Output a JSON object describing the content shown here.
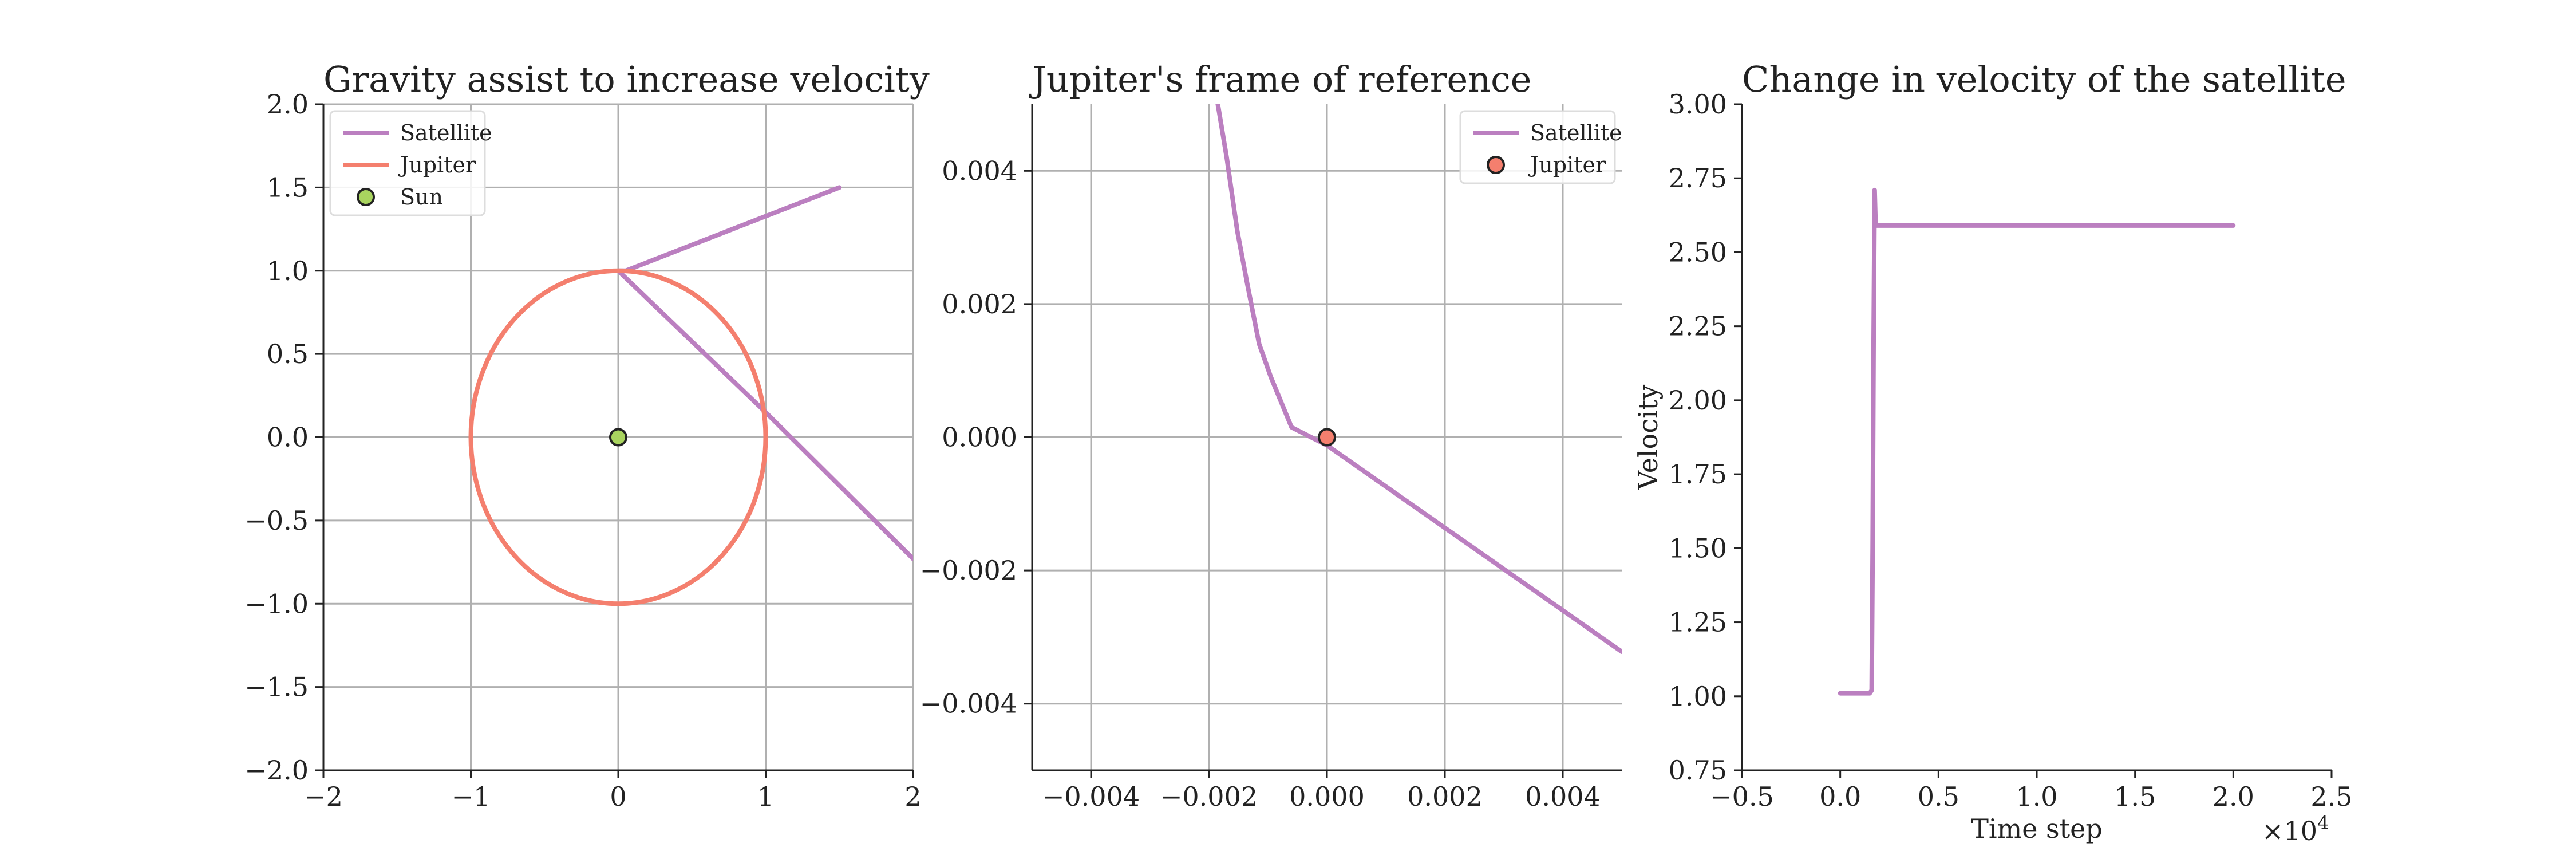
{
  "colors": {
    "satellite": "#bb7fc0",
    "jupiter": "#f47f6e",
    "sun": "#a9d45f",
    "grid": "#b0b0b0",
    "spine": "#222222"
  },
  "chart_data": [
    {
      "id": "gravity",
      "type": "line",
      "title": "Gravity assist to increase velocity",
      "xlabel": "",
      "ylabel": "",
      "xlim": [
        -2,
        2
      ],
      "ylim": [
        -2,
        2
      ],
      "xticks": [
        -2,
        -1,
        0,
        1,
        2
      ],
      "xtick_labels": [
        "−2",
        "−1",
        "0",
        "1",
        "2"
      ],
      "yticks": [
        -2,
        -1.5,
        -1,
        -0.5,
        0,
        0.5,
        1,
        1.5,
        2
      ],
      "ytick_labels": [
        "−2.0",
        "−1.5",
        "−1.0",
        "−0.5",
        "0.0",
        "0.5",
        "1.0",
        "1.5",
        "2.0"
      ],
      "grid": true,
      "legend_position": "top-left",
      "series": [
        {
          "name": "Satellite",
          "kind": "line",
          "color": "#bb7fc0",
          "x": [
            1.5,
            0.05,
            0.0,
            1.0,
            2.0
          ],
          "y": [
            1.5,
            1.0,
            1.0,
            0.15,
            -0.73
          ]
        },
        {
          "name": "Jupiter",
          "kind": "circle",
          "color": "#f47f6e",
          "center": [
            0,
            0
          ],
          "radius": 1
        },
        {
          "name": "Sun",
          "kind": "point",
          "color": "#a9d45f",
          "x": [
            0
          ],
          "y": [
            0
          ]
        }
      ]
    },
    {
      "id": "jupiter-frame",
      "type": "line",
      "title": "Jupiter's frame of reference",
      "xlabel": "",
      "ylabel": "",
      "xlim": [
        -0.005,
        0.005
      ],
      "ylim": [
        -0.005,
        0.005
      ],
      "xticks": [
        -0.004,
        -0.002,
        0,
        0.002,
        0.004
      ],
      "xtick_labels": [
        "−0.004",
        "−0.002",
        "0.000",
        "0.002",
        "0.004"
      ],
      "yticks": [
        -0.004,
        -0.002,
        0,
        0.002,
        0.004
      ],
      "ytick_labels": [
        "−0.004",
        "−0.002",
        "0.000",
        "0.002",
        "0.004"
      ],
      "grid": true,
      "legend_position": "top-right",
      "series": [
        {
          "name": "Satellite",
          "kind": "line",
          "color": "#bb7fc0",
          "x": [
            -0.00185,
            -0.0017,
            -0.00152,
            -0.00135,
            -0.00115,
            -0.00095,
            -0.0006,
            -0.0002,
            0.0,
            0.005
          ],
          "y": [
            0.005,
            0.0042,
            0.0031,
            0.0023,
            0.0014,
            0.0009,
            0.00015,
            -3e-05,
            -0.00012,
            -0.00322
          ]
        },
        {
          "name": "Jupiter",
          "kind": "point",
          "color": "#f47f6e",
          "x": [
            0
          ],
          "y": [
            0
          ]
        }
      ]
    },
    {
      "id": "velocity",
      "type": "line",
      "title": "Change in velocity of the satellite",
      "xlabel": "Time step",
      "ylabel": "Velocity",
      "x_offset_text": "×10",
      "x_offset_exp": "4",
      "xlim": [
        -0.5,
        2.5
      ],
      "ylim": [
        0.75,
        3.0
      ],
      "xticks": [
        -0.5,
        0,
        0.5,
        1,
        1.5,
        2,
        2.5
      ],
      "xtick_labels": [
        "−0.5",
        "0.0",
        "0.5",
        "1.0",
        "1.5",
        "2.0",
        "2.5"
      ],
      "yticks": [
        0.75,
        1.0,
        1.25,
        1.5,
        1.75,
        2.0,
        2.25,
        2.5,
        2.75,
        3.0
      ],
      "ytick_labels": [
        "0.75",
        "1.00",
        "1.25",
        "1.50",
        "1.75",
        "2.00",
        "2.25",
        "2.50",
        "2.75",
        "3.00"
      ],
      "grid": false,
      "series": [
        {
          "kind": "line",
          "color": "#bb7fc0",
          "x": [
            0,
            0.15,
            0.16,
            0.165,
            0.17,
            0.175,
            0.18,
            2.0
          ],
          "y": [
            1.01,
            1.01,
            1.02,
            1.5,
            2.2,
            2.71,
            2.59,
            2.59
          ]
        }
      ]
    }
  ]
}
